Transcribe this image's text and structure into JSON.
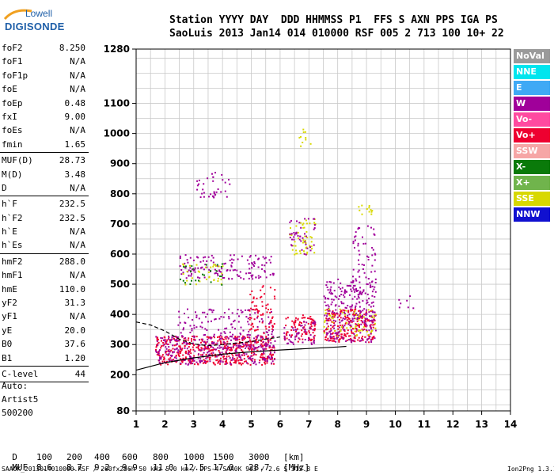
{
  "logo": {
    "line1": "Lowell",
    "line2": "DIGISONDE"
  },
  "header": {
    "row1": "Station YYYY DAY  DDD HHMMSS P1  FFS S AXN PPS IGA PS",
    "row2": "SaoLuis 2013 Jan14 014 010000 RSF 005 2 713 100 10+ 22"
  },
  "params_group1": [
    {
      "key": "foF2",
      "value": "8.250"
    },
    {
      "key": "foF1",
      "value": "N/A"
    },
    {
      "key": "foF1p",
      "value": "N/A"
    },
    {
      "key": "foE",
      "value": "N/A"
    },
    {
      "key": "foEp",
      "value": "0.48"
    },
    {
      "key": "fxI",
      "value": "9.00"
    },
    {
      "key": "foEs",
      "value": "N/A"
    },
    {
      "key": "fmin",
      "value": "1.65"
    }
  ],
  "params_group2": [
    {
      "key": "MUF(D)",
      "value": "28.73"
    },
    {
      "key": "M(D)",
      "value": "3.48"
    },
    {
      "key": "D",
      "value": "N/A"
    }
  ],
  "params_group3": [
    {
      "key": "h`F",
      "value": "232.5"
    },
    {
      "key": "h`F2",
      "value": "232.5"
    },
    {
      "key": "h`E",
      "value": "N/A"
    },
    {
      "key": "h`Es",
      "value": "N/A"
    }
  ],
  "params_group4": [
    {
      "key": "hmF2",
      "value": "288.0"
    },
    {
      "key": "hmF1",
      "value": "N/A"
    },
    {
      "key": "hmE",
      "value": "110.0"
    },
    {
      "key": "yF2",
      "value": "31.3"
    },
    {
      "key": "yF1",
      "value": "N/A"
    },
    {
      "key": "yE",
      "value": "20.0"
    },
    {
      "key": "B0",
      "value": "37.6"
    },
    {
      "key": "B1",
      "value": "1.20"
    }
  ],
  "params_group5": [
    {
      "key": "C-level",
      "value": "44"
    }
  ],
  "autoscale": {
    "line1": "Auto:",
    "line2": "Artist5",
    "line3": "500200"
  },
  "legend": [
    {
      "label": "NoVal",
      "color": "#9a9a9a"
    },
    {
      "label": "NNE",
      "color": "#00e5ee"
    },
    {
      "label": "E",
      "color": "#3fa9f5"
    },
    {
      "label": "W",
      "color": "#a0009a"
    },
    {
      "label": "Vo-",
      "color": "#ff4aa0"
    },
    {
      "label": "Vo+",
      "color": "#ee0030"
    },
    {
      "label": "SSW",
      "color": "#f6a6a6"
    },
    {
      "label": "X-",
      "color": "#0a7a0a"
    },
    {
      "label": "X+",
      "color": "#70b44c"
    },
    {
      "label": "SSE",
      "color": "#d8d800"
    },
    {
      "label": "NNW",
      "color": "#1010d0"
    }
  ],
  "muf_table": {
    "d_label": "D",
    "d_values": [
      "100",
      "200",
      "400",
      "600",
      "800",
      "1000",
      "1500",
      "3000",
      "[km]"
    ],
    "muf_label": "MUF",
    "muf_values": [
      "8.6",
      "8.7",
      "9.2",
      "9.9",
      "11.0",
      "12.5",
      "17.0",
      "28.7",
      "[MHz]"
    ]
  },
  "footer": {
    "left": "SAA0K_2013014010000.RSF / 260fx256h 50 kHz 5.0 km / DPS-4 SAA0K 903 / 2.6 S 315.8 E",
    "right": "Ion2Png 1.3.17"
  },
  "chart_data": {
    "type": "scatter",
    "title": "",
    "xlabel": "",
    "ylabel": "",
    "x_ticks": [
      1,
      2,
      3,
      4,
      5,
      6,
      7,
      8,
      9,
      10,
      11,
      12,
      13,
      14
    ],
    "y_ticks": [
      80,
      200,
      300,
      400,
      500,
      600,
      700,
      800,
      900,
      1000,
      1100,
      1280
    ],
    "xlim": [
      1,
      14
    ],
    "ylim": [
      80,
      1280
    ],
    "grid": true,
    "legend_position": "right",
    "bands": [
      {
        "x0": 1.65,
        "x1": 5.8,
        "y0": 235,
        "y1": 330,
        "color": "#ee0030",
        "density": 0.8
      },
      {
        "x0": 1.65,
        "x1": 5.8,
        "y0": 235,
        "y1": 330,
        "color": "#a0009a",
        "density": 0.5
      },
      {
        "x0": 2.4,
        "x1": 5.8,
        "y0": 330,
        "y1": 420,
        "color": "#a0009a",
        "density": 0.25
      },
      {
        "x0": 4.9,
        "x1": 5.8,
        "y0": 330,
        "y1": 500,
        "color": "#ee0030",
        "density": 0.3
      },
      {
        "x0": 2.5,
        "x1": 5.8,
        "y0": 520,
        "y1": 600,
        "color": "#a0009a",
        "density": 0.35
      },
      {
        "x0": 2.5,
        "x1": 4.0,
        "y0": 500,
        "y1": 570,
        "color": "#d8d800",
        "density": 0.2
      },
      {
        "x0": 2.5,
        "x1": 4.0,
        "y0": 500,
        "y1": 570,
        "color": "#0a7a0a",
        "density": 0.15
      },
      {
        "x0": 3.0,
        "x1": 4.3,
        "y0": 790,
        "y1": 880,
        "color": "#a0009a",
        "density": 0.2
      },
      {
        "x0": 6.1,
        "x1": 7.2,
        "y0": 310,
        "y1": 400,
        "color": "#ee0030",
        "density": 0.6
      },
      {
        "x0": 6.1,
        "x1": 7.2,
        "y0": 300,
        "y1": 380,
        "color": "#a0009a",
        "density": 0.4
      },
      {
        "x0": 6.3,
        "x1": 7.2,
        "y0": 600,
        "y1": 720,
        "color": "#d8d800",
        "density": 0.3
      },
      {
        "x0": 6.3,
        "x1": 7.2,
        "y0": 600,
        "y1": 720,
        "color": "#a0009a",
        "density": 0.25
      },
      {
        "x0": 6.6,
        "x1": 7.1,
        "y0": 960,
        "y1": 1050,
        "color": "#d8d800",
        "density": 0.15
      },
      {
        "x0": 7.5,
        "x1": 9.3,
        "y0": 310,
        "y1": 420,
        "color": "#ee0030",
        "density": 0.7
      },
      {
        "x0": 7.5,
        "x1": 9.3,
        "y0": 310,
        "y1": 520,
        "color": "#a0009a",
        "density": 0.45
      },
      {
        "x0": 7.5,
        "x1": 9.3,
        "y0": 330,
        "y1": 420,
        "color": "#d8d800",
        "density": 0.25
      },
      {
        "x0": 8.5,
        "x1": 9.3,
        "y0": 380,
        "y1": 700,
        "color": "#a0009a",
        "density": 0.2
      },
      {
        "x0": 8.7,
        "x1": 9.2,
        "y0": 720,
        "y1": 770,
        "color": "#d8d800",
        "density": 0.3
      },
      {
        "x0": 10.0,
        "x1": 10.6,
        "y0": 420,
        "y1": 470,
        "color": "#a0009a",
        "density": 0.15
      }
    ],
    "trace_lines": [
      {
        "name": "",
        "points": [
          [
            1.0,
            215
          ],
          [
            2.0,
            240
          ],
          [
            3.0,
            256
          ],
          [
            4.0,
            268
          ],
          [
            5.0,
            276
          ],
          [
            6.0,
            282
          ],
          [
            7.0,
            287
          ],
          [
            8.0,
            292
          ],
          [
            8.3,
            294
          ]
        ]
      },
      {
        "name": "",
        "points": [
          [
            1.0,
            375
          ],
          [
            1.5,
            365
          ],
          [
            2.0,
            345
          ],
          [
            2.5,
            318
          ],
          [
            3.0,
            302
          ],
          [
            3.5,
            296
          ],
          [
            4.0,
            300
          ],
          [
            4.5,
            305
          ],
          [
            5.0,
            310
          ],
          [
            5.5,
            318
          ],
          [
            6.0,
            325
          ]
        ]
      }
    ]
  }
}
